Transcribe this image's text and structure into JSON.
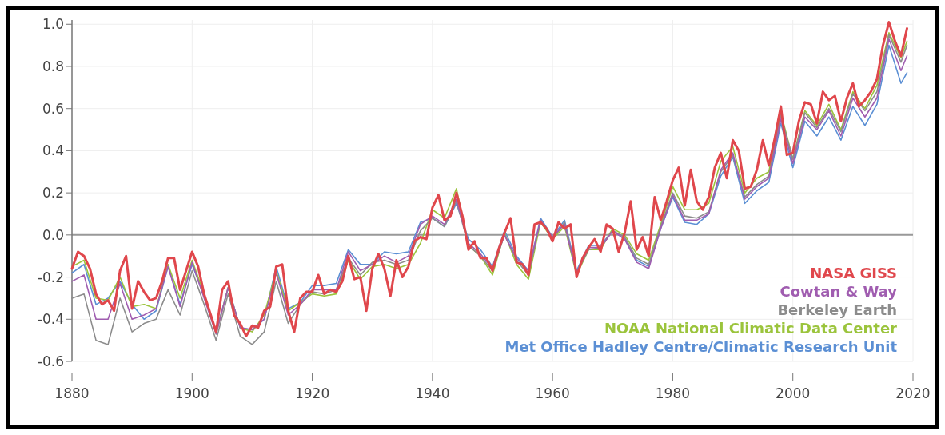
{
  "chart_data": {
    "type": "line",
    "xlim": [
      1880,
      2020
    ],
    "xticks": [
      1880,
      1900,
      1920,
      1940,
      1960,
      1980,
      2000,
      2020
    ],
    "ylim": [
      -0.6,
      1.02
    ],
    "yticks": [
      {
        "value": -0.6,
        "label": "-0.6"
      },
      {
        "value": -0.4,
        "label": "-0.4"
      },
      {
        "value": -0.2,
        "label": "-0.2"
      },
      {
        "value": 0,
        "label": "0.0"
      },
      {
        "value": 0.2,
        "label": "0.2"
      },
      {
        "value": 0.4,
        "label": "0.4"
      },
      {
        "value": 0.6,
        "label": "0.6"
      },
      {
        "value": 0.8,
        "label": "0.8"
      },
      {
        "value": 1.0,
        "label": "1.0"
      }
    ],
    "grid": true,
    "legend": "bottom right",
    "ref_lines": [
      {
        "axis": "y",
        "value": 0,
        "color": "#999999"
      }
    ],
    "series": [
      {
        "name": "NASA GISS",
        "color": "#e0474c",
        "x": [
          1880,
          1881,
          1882,
          1883,
          1884,
          1885,
          1886,
          1887,
          1888,
          1889,
          1890,
          1891,
          1892,
          1893,
          1894,
          1895,
          1896,
          1897,
          1898,
          1899,
          1900,
          1901,
          1902,
          1903,
          1904,
          1905,
          1906,
          1907,
          1908,
          1909,
          1910,
          1911,
          1912,
          1913,
          1914,
          1915,
          1916,
          1917,
          1918,
          1919,
          1920,
          1921,
          1922,
          1923,
          1924,
          1925,
          1926,
          1927,
          1928,
          1929,
          1930,
          1931,
          1932,
          1933,
          1934,
          1935,
          1936,
          1937,
          1938,
          1939,
          1940,
          1941,
          1942,
          1943,
          1944,
          1945,
          1946,
          1947,
          1948,
          1949,
          1950,
          1951,
          1952,
          1953,
          1954,
          1955,
          1956,
          1957,
          1958,
          1959,
          1960,
          1961,
          1962,
          1963,
          1964,
          1965,
          1966,
          1967,
          1968,
          1969,
          1970,
          1971,
          1972,
          1973,
          1974,
          1975,
          1976,
          1977,
          1978,
          1979,
          1980,
          1981,
          1982,
          1983,
          1984,
          1985,
          1986,
          1987,
          1988,
          1989,
          1990,
          1991,
          1992,
          1993,
          1994,
          1995,
          1996,
          1997,
          1998,
          1999,
          2000,
          2001,
          2002,
          2003,
          2004,
          2005,
          2006,
          2007,
          2008,
          2009,
          2010,
          2011,
          2012,
          2013,
          2014,
          2015,
          2016,
          2017,
          2018,
          2019
        ],
        "values": [
          -0.16,
          -0.08,
          -0.1,
          -0.16,
          -0.28,
          -0.33,
          -0.31,
          -0.36,
          -0.17,
          -0.1,
          -0.35,
          -0.22,
          -0.27,
          -0.31,
          -0.3,
          -0.22,
          -0.11,
          -0.11,
          -0.26,
          -0.17,
          -0.08,
          -0.15,
          -0.28,
          -0.37,
          -0.46,
          -0.26,
          -0.22,
          -0.38,
          -0.42,
          -0.48,
          -0.43,
          -0.44,
          -0.36,
          -0.34,
          -0.15,
          -0.14,
          -0.36,
          -0.46,
          -0.3,
          -0.27,
          -0.27,
          -0.19,
          -0.28,
          -0.26,
          -0.27,
          -0.22,
          -0.1,
          -0.21,
          -0.2,
          -0.36,
          -0.16,
          -0.09,
          -0.16,
          -0.29,
          -0.12,
          -0.2,
          -0.15,
          -0.03,
          -0.01,
          -0.02,
          0.13,
          0.19,
          0.07,
          0.09,
          0.2,
          0.09,
          -0.07,
          -0.03,
          -0.11,
          -0.11,
          -0.17,
          -0.07,
          0.01,
          0.08,
          -0.13,
          -0.14,
          -0.19,
          0.05,
          0.06,
          0.03,
          -0.03,
          0.06,
          0.03,
          0.05,
          -0.2,
          -0.11,
          -0.06,
          -0.02,
          -0.08,
          0.05,
          0.03,
          -0.08,
          0.01,
          0.16,
          -0.07,
          -0.01,
          -0.1,
          0.18,
          0.07,
          0.16,
          0.26,
          0.32,
          0.14,
          0.31,
          0.16,
          0.12,
          0.18,
          0.32,
          0.39,
          0.27,
          0.45,
          0.4,
          0.22,
          0.23,
          0.31,
          0.45,
          0.33,
          0.46,
          0.61,
          0.38,
          0.39,
          0.54,
          0.63,
          0.62,
          0.53,
          0.68,
          0.64,
          0.66,
          0.54,
          0.65,
          0.72,
          0.61,
          0.64,
          0.68,
          0.74,
          0.9,
          1.01,
          0.92,
          0.85,
          0.98
        ]
      },
      {
        "name": "Cowtan & Way",
        "color": "#a05db0",
        "x": [
          1880,
          1882,
          1884,
          1886,
          1888,
          1890,
          1892,
          1894,
          1896,
          1898,
          1900,
          1902,
          1904,
          1906,
          1908,
          1910,
          1912,
          1914,
          1916,
          1918,
          1920,
          1922,
          1924,
          1926,
          1928,
          1930,
          1932,
          1934,
          1936,
          1938,
          1940,
          1942,
          1944,
          1946,
          1948,
          1950,
          1952,
          1954,
          1956,
          1958,
          1960,
          1962,
          1964,
          1966,
          1968,
          1970,
          1972,
          1974,
          1976,
          1978,
          1980,
          1982,
          1984,
          1986,
          1988,
          1990,
          1992,
          1994,
          1996,
          1998,
          2000,
          2002,
          2004,
          2006,
          2008,
          2010,
          2012,
          2014,
          2016,
          2018,
          2019
        ],
        "values": [
          -0.22,
          -0.19,
          -0.4,
          -0.4,
          -0.23,
          -0.4,
          -0.38,
          -0.35,
          -0.15,
          -0.34,
          -0.13,
          -0.3,
          -0.47,
          -0.25,
          -0.44,
          -0.45,
          -0.4,
          -0.18,
          -0.38,
          -0.33,
          -0.26,
          -0.26,
          -0.26,
          -0.08,
          -0.17,
          -0.14,
          -0.1,
          -0.13,
          -0.1,
          0.05,
          0.09,
          0.05,
          0.17,
          -0.04,
          -0.09,
          -0.16,
          0.0,
          -0.11,
          -0.17,
          0.07,
          -0.01,
          0.05,
          -0.18,
          -0.06,
          -0.06,
          0.02,
          -0.02,
          -0.13,
          -0.16,
          0.03,
          0.19,
          0.07,
          0.07,
          0.1,
          0.31,
          0.39,
          0.17,
          0.23,
          0.27,
          0.55,
          0.34,
          0.56,
          0.5,
          0.59,
          0.47,
          0.65,
          0.56,
          0.65,
          0.93,
          0.78,
          0.85
        ]
      },
      {
        "name": "Berkeley Earth",
        "color": "#8c8c8c",
        "x": [
          1880,
          1882,
          1884,
          1886,
          1888,
          1890,
          1892,
          1894,
          1896,
          1898,
          1900,
          1902,
          1904,
          1906,
          1908,
          1910,
          1912,
          1914,
          1916,
          1918,
          1920,
          1922,
          1924,
          1926,
          1928,
          1930,
          1932,
          1934,
          1936,
          1938,
          1940,
          1942,
          1944,
          1946,
          1948,
          1950,
          1952,
          1954,
          1956,
          1958,
          1960,
          1962,
          1964,
          1966,
          1968,
          1970,
          1972,
          1974,
          1976,
          1978,
          1980,
          1982,
          1984,
          1986,
          1988,
          1990,
          1992,
          1994,
          1996,
          1998,
          2000,
          2002,
          2004,
          2006,
          2008,
          2010,
          2012,
          2014,
          2016,
          2018,
          2019
        ],
        "values": [
          -0.3,
          -0.28,
          -0.5,
          -0.52,
          -0.3,
          -0.46,
          -0.42,
          -0.4,
          -0.26,
          -0.38,
          -0.17,
          -0.33,
          -0.5,
          -0.28,
          -0.48,
          -0.52,
          -0.46,
          -0.22,
          -0.42,
          -0.33,
          -0.27,
          -0.28,
          -0.26,
          -0.11,
          -0.19,
          -0.13,
          -0.12,
          -0.14,
          -0.12,
          0.02,
          0.08,
          0.04,
          0.16,
          -0.05,
          -0.1,
          -0.17,
          0.0,
          -0.12,
          -0.19,
          0.07,
          -0.02,
          0.06,
          -0.18,
          -0.07,
          -0.06,
          0.02,
          -0.01,
          -0.11,
          -0.14,
          0.04,
          0.2,
          0.09,
          0.08,
          0.11,
          0.3,
          0.38,
          0.18,
          0.24,
          0.28,
          0.57,
          0.36,
          0.58,
          0.51,
          0.6,
          0.49,
          0.67,
          0.59,
          0.68,
          0.95,
          0.82,
          0.9
        ]
      },
      {
        "name": "NOAA National Climatic Data Center",
        "color": "#9bc43c",
        "x": [
          1880,
          1882,
          1884,
          1886,
          1888,
          1890,
          1892,
          1894,
          1896,
          1898,
          1900,
          1902,
          1904,
          1906,
          1908,
          1910,
          1912,
          1914,
          1916,
          1918,
          1920,
          1922,
          1924,
          1926,
          1928,
          1930,
          1932,
          1934,
          1936,
          1938,
          1940,
          1942,
          1944,
          1946,
          1948,
          1950,
          1952,
          1954,
          1956,
          1958,
          1960,
          1962,
          1964,
          1966,
          1968,
          1970,
          1972,
          1974,
          1976,
          1978,
          1980,
          1982,
          1984,
          1986,
          1988,
          1990,
          1992,
          1994,
          1996,
          1998,
          2000,
          2002,
          2004,
          2006,
          2008,
          2010,
          2012,
          2014,
          2016,
          2018,
          2019
        ],
        "values": [
          -0.15,
          -0.12,
          -0.3,
          -0.31,
          -0.2,
          -0.34,
          -0.33,
          -0.35,
          -0.14,
          -0.3,
          -0.12,
          -0.28,
          -0.47,
          -0.25,
          -0.44,
          -0.46,
          -0.38,
          -0.17,
          -0.36,
          -0.32,
          -0.28,
          -0.29,
          -0.28,
          -0.12,
          -0.21,
          -0.15,
          -0.14,
          -0.16,
          -0.14,
          -0.04,
          0.12,
          0.08,
          0.22,
          -0.05,
          -0.1,
          -0.19,
          0.01,
          -0.14,
          -0.21,
          0.06,
          -0.02,
          0.04,
          -0.19,
          -0.07,
          -0.07,
          0.03,
          0.0,
          -0.09,
          -0.12,
          0.05,
          0.23,
          0.12,
          0.12,
          0.15,
          0.35,
          0.42,
          0.2,
          0.27,
          0.3,
          0.58,
          0.36,
          0.59,
          0.52,
          0.62,
          0.5,
          0.68,
          0.6,
          0.71,
          0.96,
          0.84,
          0.92
        ]
      },
      {
        "name": "Met Office Hadley Centre/Climatic Research Unit",
        "color": "#5b8fd4",
        "x": [
          1880,
          1882,
          1884,
          1886,
          1888,
          1890,
          1892,
          1894,
          1896,
          1898,
          1900,
          1902,
          1904,
          1906,
          1908,
          1910,
          1912,
          1914,
          1916,
          1918,
          1920,
          1922,
          1924,
          1926,
          1928,
          1930,
          1932,
          1934,
          1936,
          1938,
          1940,
          1942,
          1944,
          1946,
          1948,
          1950,
          1952,
          1954,
          1956,
          1958,
          1960,
          1962,
          1964,
          1966,
          1968,
          1970,
          1972,
          1974,
          1976,
          1978,
          1980,
          1982,
          1984,
          1986,
          1988,
          1990,
          1992,
          1994,
          1996,
          1998,
          2000,
          2002,
          2004,
          2006,
          2008,
          2010,
          2012,
          2014,
          2016,
          2018,
          2019
        ],
        "values": [
          -0.18,
          -0.14,
          -0.33,
          -0.3,
          -0.22,
          -0.33,
          -0.4,
          -0.36,
          -0.15,
          -0.33,
          -0.14,
          -0.29,
          -0.46,
          -0.25,
          -0.44,
          -0.45,
          -0.4,
          -0.15,
          -0.35,
          -0.32,
          -0.24,
          -0.24,
          -0.23,
          -0.07,
          -0.14,
          -0.14,
          -0.08,
          -0.09,
          -0.08,
          0.06,
          0.08,
          0.04,
          0.15,
          -0.02,
          -0.07,
          -0.15,
          0.02,
          -0.1,
          -0.17,
          0.08,
          -0.01,
          0.07,
          -0.17,
          -0.05,
          -0.05,
          0.02,
          -0.02,
          -0.12,
          -0.15,
          0.03,
          0.18,
          0.06,
          0.05,
          0.1,
          0.28,
          0.37,
          0.15,
          0.21,
          0.25,
          0.53,
          0.32,
          0.54,
          0.47,
          0.56,
          0.45,
          0.61,
          0.52,
          0.62,
          0.9,
          0.72,
          0.77
        ]
      }
    ]
  }
}
